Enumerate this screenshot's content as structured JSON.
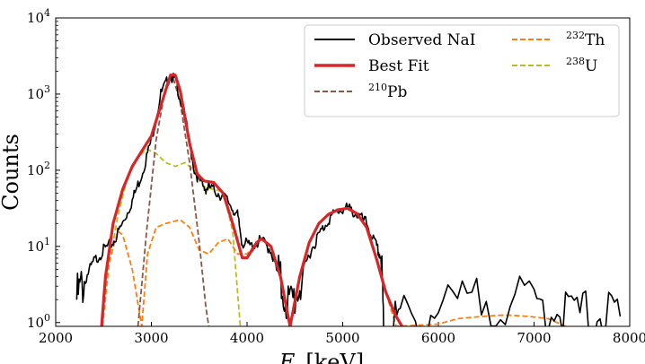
{
  "chart_data": {
    "type": "line",
    "title": "",
    "xlabel": "E",
    "xlabel_unit": "[keV]",
    "ylabel": "Counts",
    "xlim": [
      2000,
      8000
    ],
    "ylim_log10": [
      -0.05,
      4
    ],
    "yscale": "log",
    "x_ticks": [
      "2000",
      "3000",
      "4000",
      "5000",
      "6000",
      "7000",
      "8000"
    ],
    "y_ticks": [
      {
        "base": "10",
        "exp": "0"
      },
      {
        "base": "10",
        "exp": "1"
      },
      {
        "base": "10",
        "exp": "2"
      },
      {
        "base": "10",
        "exp": "3"
      },
      {
        "base": "10",
        "exp": "4"
      }
    ],
    "legend_position": "top-right",
    "legend": [
      {
        "pre": "",
        "sup": "",
        "label": "Observed NaI"
      },
      {
        "pre": "",
        "sup": "",
        "label": "Best Fit"
      },
      {
        "pre": "",
        "sup": "210",
        "label": "Pb"
      },
      {
        "pre": "",
        "sup": "232",
        "label": "Th"
      },
      {
        "pre": "",
        "sup": "238",
        "label": "U"
      }
    ],
    "series": [
      {
        "name": "Observed NaI",
        "color": "#000000",
        "style": "solid",
        "note": "noisy measured spectrum",
        "points": [
          [
            2220,
            0.3
          ],
          [
            2300,
            0.55
          ],
          [
            2400,
            0.8
          ],
          [
            2500,
            0.95
          ],
          [
            2600,
            1.05
          ],
          [
            2700,
            1.3
          ],
          [
            2800,
            1.6
          ],
          [
            2900,
            1.95
          ],
          [
            3000,
            2.4
          ],
          [
            3100,
            3.0
          ],
          [
            3200,
            3.25
          ],
          [
            3260,
            3.15
          ],
          [
            3350,
            2.7
          ],
          [
            3450,
            2.0
          ],
          [
            3550,
            1.75
          ],
          [
            3600,
            1.78
          ],
          [
            3700,
            1.7
          ],
          [
            3800,
            1.6
          ],
          [
            3900,
            1.4
          ],
          [
            3950,
            1.05
          ],
          [
            4050,
            1.0
          ],
          [
            4150,
            1.08
          ],
          [
            4250,
            0.95
          ],
          [
            4350,
            0.5
          ],
          [
            4450,
            0.2
          ],
          [
            4550,
            0.5
          ],
          [
            4650,
            0.9
          ],
          [
            4750,
            1.15
          ],
          [
            4850,
            1.35
          ],
          [
            4950,
            1.47
          ],
          [
            5050,
            1.5
          ],
          [
            5150,
            1.42
          ],
          [
            5250,
            1.3
          ],
          [
            5350,
            1.0
          ],
          [
            5400,
            0.85
          ],
          [
            5430,
            -0.05
          ],
          [
            5600,
            0.05
          ],
          [
            6000,
            0.15
          ],
          [
            6500,
            0.3
          ],
          [
            7000,
            0.25
          ],
          [
            7300,
            0.15
          ],
          [
            7600,
            0.1
          ],
          [
            7900,
            0.08
          ]
        ]
      },
      {
        "name": "Best Fit",
        "color": "#d62728",
        "style": "solid",
        "points": [
          [
            2480,
            -0.05
          ],
          [
            2520,
            0.6
          ],
          [
            2600,
            1.3
          ],
          [
            2700,
            1.75
          ],
          [
            2800,
            2.05
          ],
          [
            2900,
            2.25
          ],
          [
            3000,
            2.45
          ],
          [
            3100,
            2.85
          ],
          [
            3200,
            3.25
          ],
          [
            3250,
            3.25
          ],
          [
            3300,
            3.05
          ],
          [
            3400,
            2.35
          ],
          [
            3480,
            1.95
          ],
          [
            3550,
            1.86
          ],
          [
            3650,
            1.84
          ],
          [
            3750,
            1.7
          ],
          [
            3850,
            1.3
          ],
          [
            3950,
            0.85
          ],
          [
            4000,
            0.85
          ],
          [
            4100,
            1.05
          ],
          [
            4150,
            1.1
          ],
          [
            4250,
            1.0
          ],
          [
            4350,
            0.6
          ],
          [
            4450,
            -0.05
          ],
          [
            4550,
            0.6
          ],
          [
            4650,
            1.05
          ],
          [
            4750,
            1.3
          ],
          [
            4850,
            1.42
          ],
          [
            4950,
            1.48
          ],
          [
            5050,
            1.5
          ],
          [
            5150,
            1.43
          ],
          [
            5250,
            1.25
          ],
          [
            5350,
            0.85
          ],
          [
            5450,
            0.4
          ],
          [
            5550,
            0.1
          ],
          [
            5620,
            -0.05
          ]
        ]
      },
      {
        "name": "210Pb",
        "color": "#8c564b",
        "style": "dashed",
        "points": [
          [
            2860,
            -0.05
          ],
          [
            2950,
            1.2
          ],
          [
            3050,
            2.4
          ],
          [
            3150,
            3.1
          ],
          [
            3220,
            3.25
          ],
          [
            3300,
            2.9
          ],
          [
            3400,
            2.1
          ],
          [
            3500,
            1.05
          ],
          [
            3570,
            0.2
          ],
          [
            3600,
            -0.05
          ]
        ]
      },
      {
        "name": "232Th",
        "color": "#ff7f0e",
        "style": "dashed",
        "points": [
          [
            2490,
            -0.05
          ],
          [
            2560,
            0.8
          ],
          [
            2650,
            1.2
          ],
          [
            2700,
            1.15
          ],
          [
            2800,
            0.7
          ],
          [
            2900,
            -0.05
          ],
          [
            2960,
            0.9
          ],
          [
            3050,
            1.25
          ],
          [
            3150,
            1.3
          ],
          [
            3300,
            1.35
          ],
          [
            3400,
            1.25
          ],
          [
            3500,
            0.95
          ],
          [
            3600,
            0.9
          ],
          [
            3700,
            1.05
          ],
          [
            3800,
            1.1
          ],
          [
            3900,
            0.9
          ],
          [
            4000,
            0.9
          ],
          [
            4150,
            1.1
          ],
          [
            4250,
            1.0
          ],
          [
            4350,
            0.6
          ],
          [
            4450,
            -0.05
          ],
          [
            4550,
            0.6
          ],
          [
            4650,
            1.05
          ],
          [
            4750,
            1.3
          ],
          [
            4850,
            1.42
          ],
          [
            4950,
            1.48
          ],
          [
            5050,
            1.5
          ],
          [
            5150,
            1.43
          ],
          [
            5250,
            1.25
          ],
          [
            5350,
            0.85
          ],
          [
            5450,
            0.4
          ],
          [
            5560,
            -0.05
          ],
          [
            6000,
            -0.02
          ],
          [
            6200,
            0.05
          ],
          [
            6450,
            0.08
          ],
          [
            6700,
            0.1
          ],
          [
            6950,
            0.08
          ],
          [
            7150,
            0.05
          ],
          [
            7330,
            -0.05
          ]
        ]
      },
      {
        "name": "238U",
        "color": "#bcbd22",
        "style": "dashed",
        "points": [
          [
            2480,
            -0.05
          ],
          [
            2550,
            0.7
          ],
          [
            2650,
            1.4
          ],
          [
            2750,
            1.9
          ],
          [
            2850,
            2.15
          ],
          [
            2950,
            2.28
          ],
          [
            3050,
            2.22
          ],
          [
            3150,
            2.1
          ],
          [
            3250,
            2.05
          ],
          [
            3350,
            2.1
          ],
          [
            3450,
            2.0
          ],
          [
            3550,
            1.78
          ],
          [
            3650,
            1.75
          ],
          [
            3750,
            1.72
          ],
          [
            3850,
            1.2
          ],
          [
            3930,
            -0.05
          ]
        ]
      }
    ]
  }
}
